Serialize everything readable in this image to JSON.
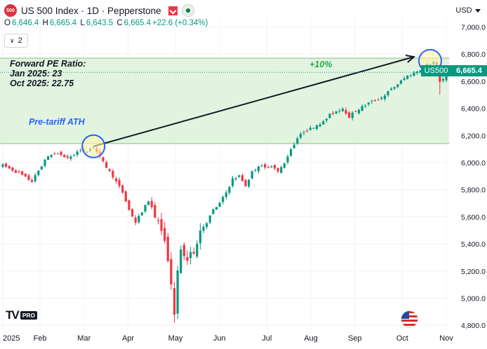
{
  "header": {
    "symbol_badge": "500",
    "title": "US 500 Index · 1D · Pepperstone",
    "ohlc": {
      "o": "6,646.4",
      "h": "6,665.4",
      "l": "6,643.5",
      "c": "6,665.4",
      "change": "+22.6 (+0.34%)"
    },
    "indicator_count": "2",
    "currency": "USD"
  },
  "annotations": {
    "pe_title": "Forward PE Ratio:",
    "pe_jan": "Jan 2025: 23",
    "pe_oct": "Oct 2025: 22.75",
    "pre_tariff": "Pre-tariff ATH",
    "gain": "+10%"
  },
  "price_tag": {
    "symbol": "US500",
    "price": "6,665.4"
  },
  "brand": {
    "logo": "TV",
    "pro": "PRO"
  },
  "colors": {
    "up": "#089981",
    "down": "#f23645",
    "zone": "#d8f0d5",
    "zone_line": "#7cc47c",
    "arrow": "#131722",
    "circle": "#2962ff"
  },
  "chart_data": {
    "type": "candlestick",
    "x_labels": [
      "2025",
      "Feb",
      "Mar",
      "Apr",
      "May",
      "Jun",
      "Jul",
      "Aug",
      "Sep",
      "Oct",
      "Nov"
    ],
    "y_ticks": [
      4800,
      5000,
      5200,
      5400,
      5600,
      5800,
      6000,
      6200,
      6400,
      6600,
      6800,
      7000
    ],
    "y_tick_labels": [
      "4,800.0",
      "5,000.0",
      "5,200.0",
      "5,400.0",
      "5,600.0",
      "5,800.0",
      "6,000.0",
      "6,200.0",
      "6,400.0",
      "6,600.0",
      "6,800.0",
      "7,000.0"
    ],
    "ylim": [
      4770,
      7070
    ],
    "last_price": 6665.4,
    "zone": [
      6140,
      6770
    ],
    "path_points": [
      [
        0,
        5980
      ],
      [
        5,
        5920
      ],
      [
        9,
        5860
      ],
      [
        12,
        5980
      ],
      [
        14,
        6050
      ],
      [
        17,
        6070
      ],
      [
        20,
        6030
      ],
      [
        23,
        6080
      ],
      [
        26,
        6090
      ],
      [
        28,
        6120
      ],
      [
        31,
        6000
      ],
      [
        34,
        5900
      ],
      [
        37,
        5780
      ],
      [
        39,
        5650
      ],
      [
        41,
        5560
      ],
      [
        43,
        5640
      ],
      [
        45,
        5720
      ],
      [
        47,
        5620
      ],
      [
        49,
        5500
      ],
      [
        51,
        5300
      ],
      [
        52,
        5080
      ],
      [
        53,
        4900
      ],
      [
        54,
        5180
      ],
      [
        55,
        5350
      ],
      [
        57,
        5280
      ],
      [
        59,
        5350
      ],
      [
        61,
        5500
      ],
      [
        63,
        5560
      ],
      [
        65,
        5650
      ],
      [
        67,
        5700
      ],
      [
        69,
        5780
      ],
      [
        71,
        5880
      ],
      [
        73,
        5900
      ],
      [
        75,
        5830
      ],
      [
        77,
        5930
      ],
      [
        79,
        5980
      ],
      [
        81,
        5960
      ],
      [
        83,
        5980
      ],
      [
        85,
        5930
      ],
      [
        87,
        6000
      ],
      [
        89,
        6100
      ],
      [
        91,
        6180
      ],
      [
        93,
        6230
      ],
      [
        95,
        6250
      ],
      [
        97,
        6280
      ],
      [
        99,
        6300
      ],
      [
        101,
        6350
      ],
      [
        103,
        6380
      ],
      [
        105,
        6400
      ],
      [
        107,
        6340
      ],
      [
        109,
        6380
      ],
      [
        111,
        6410
      ],
      [
        113,
        6440
      ],
      [
        115,
        6460
      ],
      [
        117,
        6480
      ],
      [
        119,
        6520
      ],
      [
        121,
        6560
      ],
      [
        123,
        6600
      ],
      [
        125,
        6640
      ],
      [
        127,
        6660
      ],
      [
        129,
        6690
      ],
      [
        131,
        6720
      ],
      [
        133,
        6740
      ],
      [
        134,
        6700
      ],
      [
        135,
        6590
      ],
      [
        136,
        6620
      ],
      [
        137,
        6665
      ]
    ],
    "pretariff_point": [
      28,
      6120
    ],
    "arrow_end": [
      127,
      6780
    ],
    "peak_point": [
      132,
      6750
    ]
  }
}
